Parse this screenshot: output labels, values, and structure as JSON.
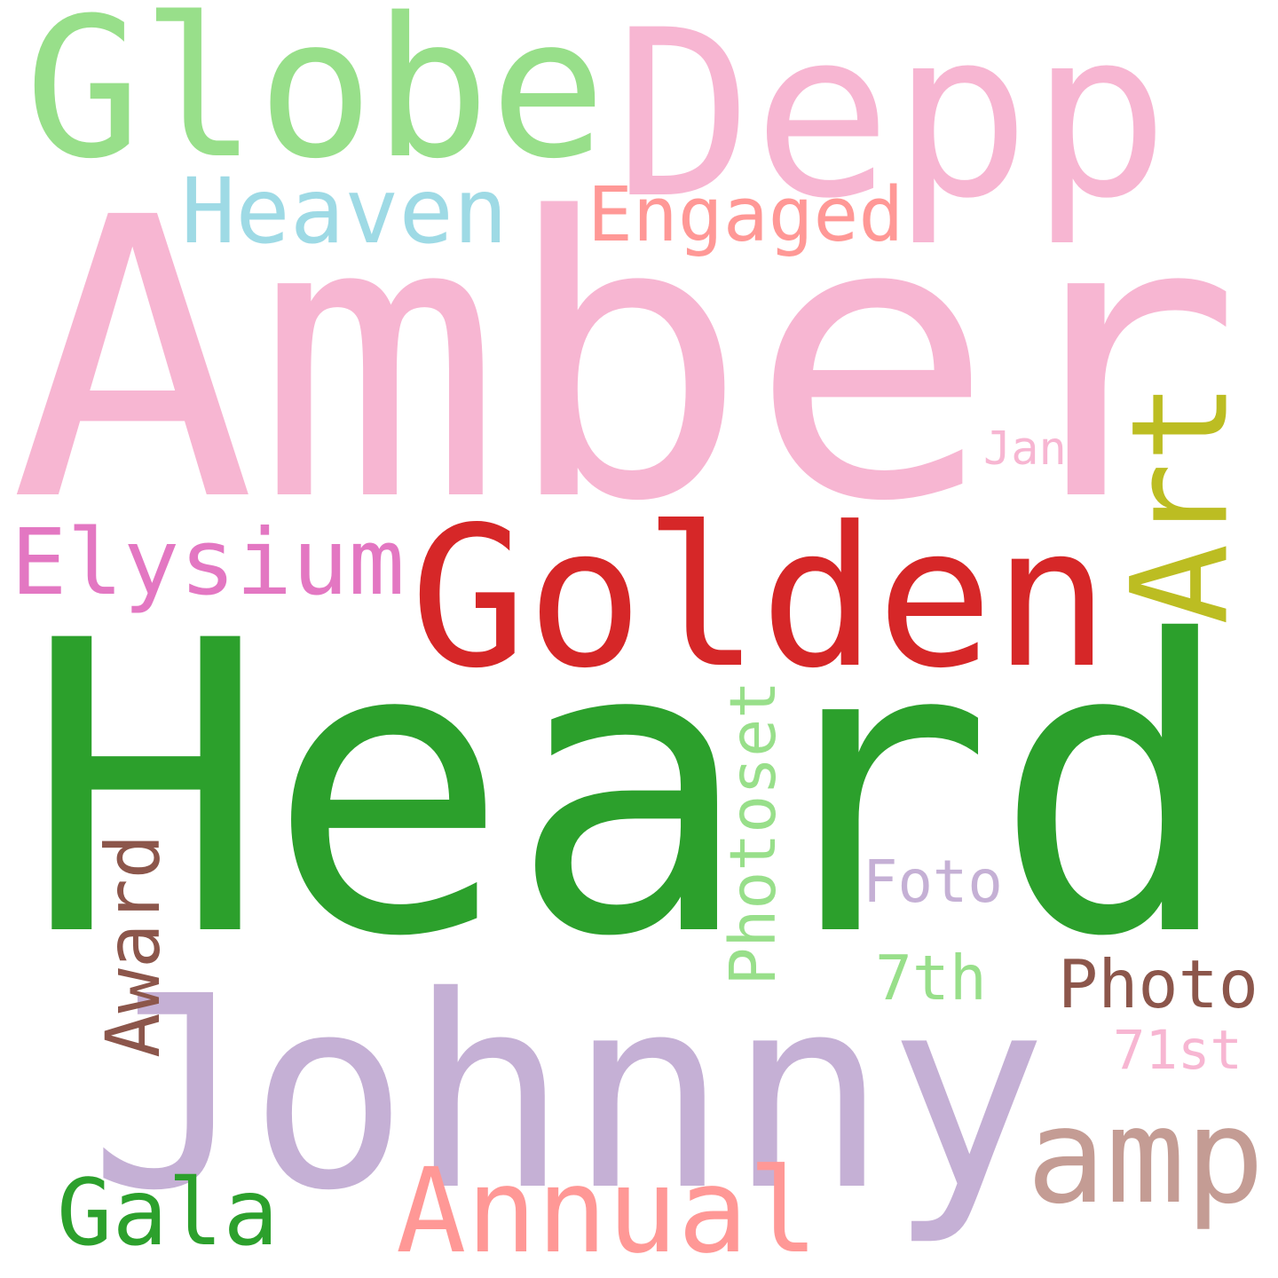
{
  "words": [
    {
      "text": "Amber",
      "color": "#f7b6d2",
      "vertical": false
    },
    {
      "text": "Heard",
      "color": "#2ca02c",
      "vertical": false
    },
    {
      "text": "Johnny",
      "color": "#c5b0d5",
      "vertical": false
    },
    {
      "text": "Depp",
      "color": "#f7b6d2",
      "vertical": false
    },
    {
      "text": "Globe",
      "color": "#98df8a",
      "vertical": false
    },
    {
      "text": "Golden",
      "color": "#d62728",
      "vertical": false
    },
    {
      "text": "Heaven",
      "color": "#9edae5",
      "vertical": false
    },
    {
      "text": "Engaged",
      "color": "#ff9896",
      "vertical": false
    },
    {
      "text": "Art",
      "color": "#bcbd22",
      "vertical": true
    },
    {
      "text": "Elysium",
      "color": "#e377c2",
      "vertical": false
    },
    {
      "text": "Jan",
      "color": "#f7b6d2",
      "vertical": false
    },
    {
      "text": "Photoset",
      "color": "#98df8a",
      "vertical": true
    },
    {
      "text": "Award",
      "color": "#8c564b",
      "vertical": true
    },
    {
      "text": "Foto",
      "color": "#c5b0d5",
      "vertical": false
    },
    {
      "text": "7th",
      "color": "#98df8a",
      "vertical": false
    },
    {
      "text": "Photo",
      "color": "#8c564b",
      "vertical": false
    },
    {
      "text": "71st",
      "color": "#f7b6d2",
      "vertical": false
    },
    {
      "text": "amp",
      "color": "#c49c94",
      "vertical": false
    },
    {
      "text": "Gala",
      "color": "#2ca02c",
      "vertical": false
    },
    {
      "text": "Annual",
      "color": "#ff9896",
      "vertical": false
    }
  ]
}
